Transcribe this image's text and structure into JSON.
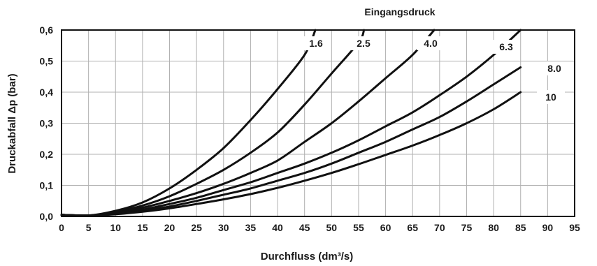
{
  "chart_data": {
    "type": "line",
    "title": "",
    "legend_title": "Eingangsdruck",
    "xlabel": "Durchfluss (dm³/s)",
    "ylabel": "Druckabfall Δp (bar)",
    "xlim": [
      0,
      95
    ],
    "ylim": [
      0,
      0.6
    ],
    "x_ticks": [
      "0",
      "5",
      "10",
      "15",
      "20",
      "25",
      "30",
      "35",
      "40",
      "45",
      "50",
      "55",
      "60",
      "65",
      "70",
      "75",
      "80",
      "85",
      "90",
      "95"
    ],
    "y_ticks": [
      "0,0",
      "0,1",
      "0,2",
      "0,3",
      "0,4",
      "0,5",
      "0,6"
    ],
    "grid": true,
    "colors": {
      "curve": "#111111",
      "grid": "#b0b0b0",
      "frame": "#111111"
    },
    "series": [
      {
        "name": "1.6",
        "x": [
          0,
          5,
          10,
          15,
          20,
          25,
          30,
          35,
          40,
          45,
          47
        ],
        "y": [
          0.005,
          0.003,
          0.018,
          0.045,
          0.09,
          0.15,
          0.22,
          0.31,
          0.41,
          0.52,
          0.6
        ]
      },
      {
        "name": "2.5",
        "x": [
          0,
          5,
          10,
          15,
          20,
          25,
          30,
          35,
          40,
          45,
          50,
          55,
          56
        ],
        "y": [
          0.005,
          0.003,
          0.015,
          0.035,
          0.065,
          0.105,
          0.15,
          0.205,
          0.27,
          0.36,
          0.46,
          0.56,
          0.6
        ]
      },
      {
        "name": "4.0",
        "x": [
          0,
          5,
          10,
          15,
          20,
          25,
          30,
          35,
          40,
          45,
          50,
          55,
          60,
          65,
          69
        ],
        "y": [
          0.005,
          0.003,
          0.012,
          0.028,
          0.05,
          0.075,
          0.105,
          0.14,
          0.18,
          0.24,
          0.3,
          0.37,
          0.445,
          0.52,
          0.6
        ]
      },
      {
        "name": "6.3",
        "x": [
          0,
          5,
          10,
          15,
          20,
          25,
          30,
          35,
          40,
          45,
          50,
          55,
          60,
          65,
          70,
          75,
          80,
          85
        ],
        "y": [
          0.005,
          0.003,
          0.01,
          0.022,
          0.04,
          0.06,
          0.085,
          0.11,
          0.14,
          0.17,
          0.205,
          0.245,
          0.29,
          0.335,
          0.39,
          0.45,
          0.52,
          0.6
        ]
      },
      {
        "name": "8.0",
        "x": [
          0,
          5,
          10,
          15,
          20,
          25,
          30,
          35,
          40,
          45,
          50,
          55,
          60,
          65,
          70,
          75,
          80,
          85
        ],
        "y": [
          0.005,
          0.003,
          0.008,
          0.018,
          0.032,
          0.05,
          0.07,
          0.09,
          0.115,
          0.14,
          0.17,
          0.205,
          0.24,
          0.28,
          0.32,
          0.37,
          0.425,
          0.48
        ]
      },
      {
        "name": "10",
        "x": [
          0,
          5,
          10,
          15,
          20,
          25,
          30,
          35,
          40,
          45,
          50,
          55,
          60,
          65,
          70,
          75,
          80,
          85
        ],
        "y": [
          0.005,
          0.003,
          0.007,
          0.015,
          0.026,
          0.04,
          0.055,
          0.072,
          0.092,
          0.115,
          0.14,
          0.168,
          0.198,
          0.228,
          0.262,
          0.3,
          0.345,
          0.4
        ]
      }
    ]
  }
}
